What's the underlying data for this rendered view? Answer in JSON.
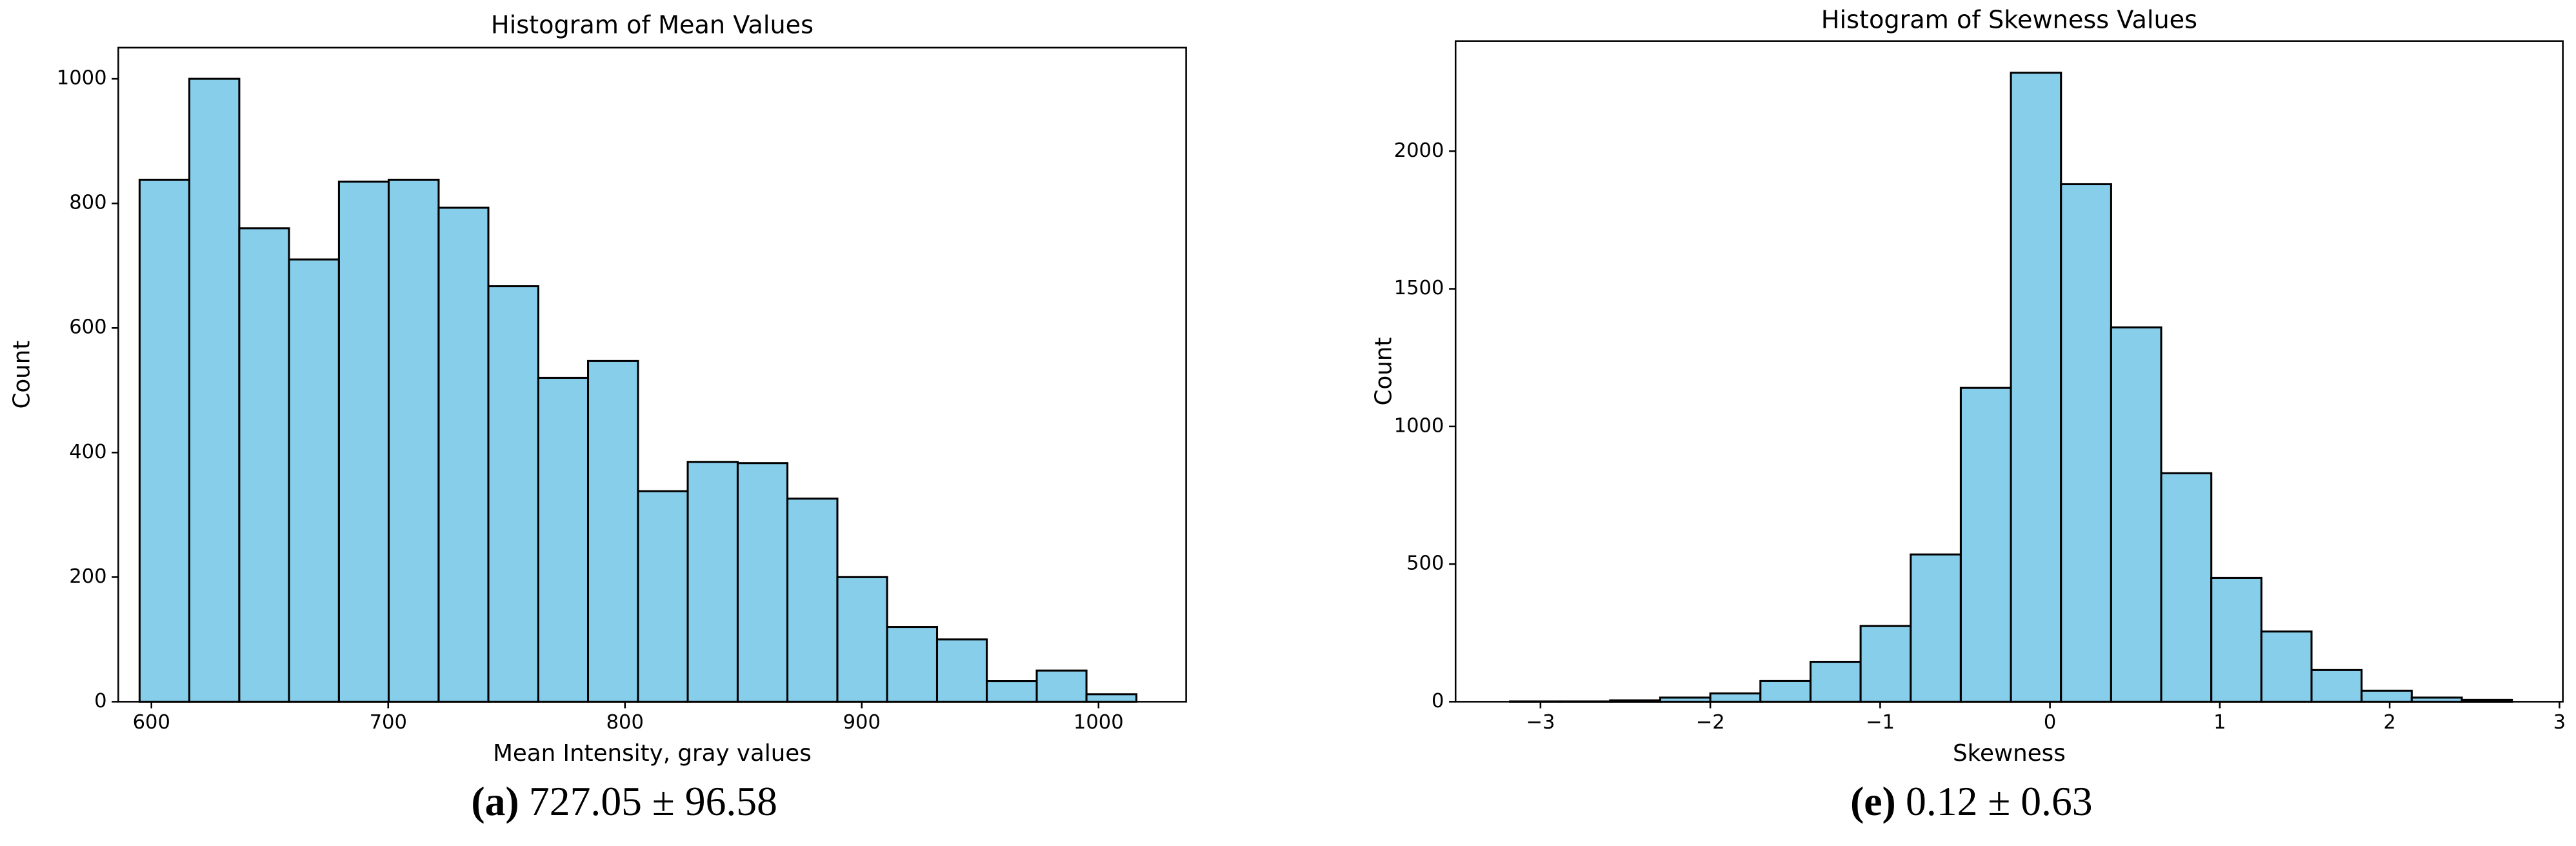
{
  "chart_data": [
    {
      "type": "histogram",
      "title": "Histogram of Mean Values",
      "x_label": "Mean Intensity, gray values",
      "y_label": "Count",
      "bins": [
        595.0,
        616.0,
        637.1,
        658.1,
        679.2,
        700.2,
        721.3,
        742.3,
        763.4,
        784.4,
        805.5,
        826.5,
        847.6,
        868.6,
        889.7,
        910.7,
        931.8,
        952.8,
        973.9,
        994.9,
        1016.0
      ],
      "values": [
        838,
        1000,
        760,
        710,
        835,
        838,
        793,
        667,
        520,
        547,
        338,
        385,
        383,
        326,
        200,
        120,
        100,
        33,
        50,
        12
      ],
      "color": "#87ceeb",
      "edgecolor": "#000000",
      "xlim": [
        586,
        1037
      ],
      "xticks": [
        600,
        700,
        800,
        900,
        1000
      ],
      "ylim": [
        0,
        1050
      ],
      "yticks": [
        0,
        200,
        400,
        600,
        800,
        1000
      ],
      "grid": false,
      "caption_label": "(a)",
      "caption": "727.05 ± 96.58"
    },
    {
      "type": "histogram",
      "title": "Histogram of Skewness Values",
      "x_label": "Skewness",
      "y_label": "Count",
      "bins": [
        -3.18,
        -2.885,
        -2.59,
        -2.295,
        -2.0,
        -1.705,
        -1.41,
        -1.115,
        -0.82,
        -0.525,
        -0.23,
        0.065,
        0.36,
        0.655,
        0.95,
        1.245,
        1.54,
        1.835,
        2.13,
        2.425,
        2.72
      ],
      "values": [
        1,
        1,
        5,
        15,
        30,
        75,
        145,
        275,
        535,
        1140,
        2285,
        1880,
        1360,
        830,
        450,
        255,
        115,
        40,
        15,
        7
      ],
      "color": "#87ceeb",
      "edgecolor": "#000000",
      "xlim": [
        -3.5,
        3.02
      ],
      "xticks": [
        {
          "value": -3,
          "label": "−3"
        },
        {
          "value": -2,
          "label": "−2"
        },
        {
          "value": -1,
          "label": "−1"
        },
        0,
        1,
        2,
        3
      ],
      "ylim": [
        0,
        2400
      ],
      "yticks": [
        0,
        500,
        1000,
        1500,
        2000
      ],
      "grid": false,
      "caption_label": "(e)",
      "caption": "0.12 ± 0.63"
    }
  ]
}
